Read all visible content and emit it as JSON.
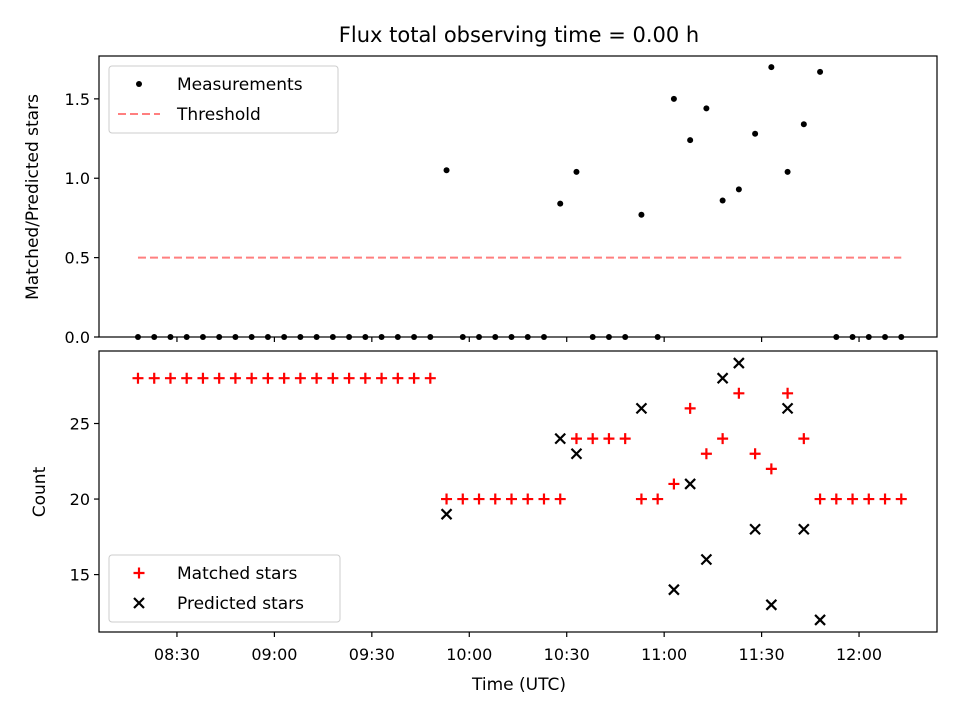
{
  "chart_data": [
    {
      "type": "scatter",
      "title": "Flux total observing time = 0.00 h",
      "xlabel": "",
      "ylabel": "Matched/Predicted stars",
      "xlim": [
        "08:06",
        "12:24"
      ],
      "ylim": [
        0,
        1.77
      ],
      "yticks": [
        0,
        0.5,
        1.0,
        1.5
      ],
      "ytick_labels": [
        "0.0",
        "0.5",
        "1.0",
        "1.5"
      ],
      "legend_position": "top-left",
      "series": [
        {
          "name": "Measurements",
          "color": "#000000",
          "marker": "dot",
          "points": [
            {
              "x": "08:18",
              "y": 0
            },
            {
              "x": "08:23",
              "y": 0
            },
            {
              "x": "08:28",
              "y": 0
            },
            {
              "x": "08:33",
              "y": 0
            },
            {
              "x": "08:38",
              "y": 0
            },
            {
              "x": "08:43",
              "y": 0
            },
            {
              "x": "08:48",
              "y": 0
            },
            {
              "x": "08:53",
              "y": 0
            },
            {
              "x": "08:58",
              "y": 0
            },
            {
              "x": "09:03",
              "y": 0
            },
            {
              "x": "09:08",
              "y": 0
            },
            {
              "x": "09:13",
              "y": 0
            },
            {
              "x": "09:18",
              "y": 0
            },
            {
              "x": "09:23",
              "y": 0
            },
            {
              "x": "09:28",
              "y": 0
            },
            {
              "x": "09:33",
              "y": 0
            },
            {
              "x": "09:38",
              "y": 0
            },
            {
              "x": "09:43",
              "y": 0
            },
            {
              "x": "09:48",
              "y": 0
            },
            {
              "x": "09:53",
              "y": 1.05
            },
            {
              "x": "09:58",
              "y": 0
            },
            {
              "x": "10:03",
              "y": 0
            },
            {
              "x": "10:08",
              "y": 0
            },
            {
              "x": "10:13",
              "y": 0
            },
            {
              "x": "10:18",
              "y": 0
            },
            {
              "x": "10:23",
              "y": 0
            },
            {
              "x": "10:28",
              "y": 0.84
            },
            {
              "x": "10:33",
              "y": 1.04
            },
            {
              "x": "10:38",
              "y": 0
            },
            {
              "x": "10:43",
              "y": 0
            },
            {
              "x": "10:48",
              "y": 0
            },
            {
              "x": "10:53",
              "y": 0.77
            },
            {
              "x": "10:58",
              "y": 0
            },
            {
              "x": "11:03",
              "y": 1.5
            },
            {
              "x": "11:08",
              "y": 1.24
            },
            {
              "x": "11:13",
              "y": 1.44
            },
            {
              "x": "11:18",
              "y": 0.86
            },
            {
              "x": "11:23",
              "y": 0.93
            },
            {
              "x": "11:28",
              "y": 1.28
            },
            {
              "x": "11:33",
              "y": 1.7
            },
            {
              "x": "11:38",
              "y": 1.04
            },
            {
              "x": "11:43",
              "y": 1.34
            },
            {
              "x": "11:48",
              "y": 1.67
            },
            {
              "x": "11:53",
              "y": 0
            },
            {
              "x": "11:58",
              "y": 0
            },
            {
              "x": "12:03",
              "y": 0
            },
            {
              "x": "12:08",
              "y": 0
            },
            {
              "x": "12:13",
              "y": 0
            }
          ]
        },
        {
          "name": "Threshold",
          "color": "#ff7f7f",
          "marker": "dashed-line",
          "points": [
            {
              "x": "08:18",
              "y": 0.5
            },
            {
              "x": "12:13",
              "y": 0.5
            }
          ]
        }
      ]
    },
    {
      "type": "scatter",
      "title": "",
      "xlabel": "Time (UTC)",
      "ylabel": "Count",
      "xlim": [
        "08:06",
        "12:24"
      ],
      "ylim": [
        11.2,
        29.8
      ],
      "yticks": [
        15,
        20,
        25
      ],
      "ytick_labels": [
        "15",
        "20",
        "25"
      ],
      "xticks": [
        "08:30",
        "09:00",
        "09:30",
        "10:00",
        "10:30",
        "11:00",
        "11:30",
        "12:00"
      ],
      "legend_position": "bottom-left",
      "series": [
        {
          "name": "Matched stars",
          "color": "#ff0000",
          "marker": "plus",
          "points": [
            {
              "x": "08:18",
              "y": 28
            },
            {
              "x": "08:23",
              "y": 28
            },
            {
              "x": "08:28",
              "y": 28
            },
            {
              "x": "08:33",
              "y": 28
            },
            {
              "x": "08:38",
              "y": 28
            },
            {
              "x": "08:43",
              "y": 28
            },
            {
              "x": "08:48",
              "y": 28
            },
            {
              "x": "08:53",
              "y": 28
            },
            {
              "x": "08:58",
              "y": 28
            },
            {
              "x": "09:03",
              "y": 28
            },
            {
              "x": "09:08",
              "y": 28
            },
            {
              "x": "09:13",
              "y": 28
            },
            {
              "x": "09:18",
              "y": 28
            },
            {
              "x": "09:23",
              "y": 28
            },
            {
              "x": "09:28",
              "y": 28
            },
            {
              "x": "09:33",
              "y": 28
            },
            {
              "x": "09:38",
              "y": 28
            },
            {
              "x": "09:43",
              "y": 28
            },
            {
              "x": "09:48",
              "y": 28
            },
            {
              "x": "09:53",
              "y": 20
            },
            {
              "x": "09:58",
              "y": 20
            },
            {
              "x": "10:03",
              "y": 20
            },
            {
              "x": "10:08",
              "y": 20
            },
            {
              "x": "10:13",
              "y": 20
            },
            {
              "x": "10:18",
              "y": 20
            },
            {
              "x": "10:23",
              "y": 20
            },
            {
              "x": "10:28",
              "y": 20
            },
            {
              "x": "10:33",
              "y": 24
            },
            {
              "x": "10:38",
              "y": 24
            },
            {
              "x": "10:43",
              "y": 24
            },
            {
              "x": "10:48",
              "y": 24
            },
            {
              "x": "10:53",
              "y": 20
            },
            {
              "x": "10:58",
              "y": 20
            },
            {
              "x": "11:03",
              "y": 21
            },
            {
              "x": "11:08",
              "y": 26
            },
            {
              "x": "11:13",
              "y": 23
            },
            {
              "x": "11:18",
              "y": 24
            },
            {
              "x": "11:23",
              "y": 27
            },
            {
              "x": "11:28",
              "y": 23
            },
            {
              "x": "11:33",
              "y": 22
            },
            {
              "x": "11:38",
              "y": 27
            },
            {
              "x": "11:43",
              "y": 24
            },
            {
              "x": "11:48",
              "y": 20
            },
            {
              "x": "11:53",
              "y": 20
            },
            {
              "x": "11:58",
              "y": 20
            },
            {
              "x": "12:03",
              "y": 20
            },
            {
              "x": "12:08",
              "y": 20
            },
            {
              "x": "12:13",
              "y": 20
            }
          ]
        },
        {
          "name": "Predicted stars",
          "color": "#000000",
          "marker": "x",
          "points": [
            {
              "x": "09:53",
              "y": 19
            },
            {
              "x": "10:28",
              "y": 24
            },
            {
              "x": "10:33",
              "y": 23
            },
            {
              "x": "10:53",
              "y": 26
            },
            {
              "x": "11:03",
              "y": 14
            },
            {
              "x": "11:08",
              "y": 21
            },
            {
              "x": "11:13",
              "y": 16
            },
            {
              "x": "11:18",
              "y": 28
            },
            {
              "x": "11:23",
              "y": 29
            },
            {
              "x": "11:28",
              "y": 18
            },
            {
              "x": "11:33",
              "y": 13
            },
            {
              "x": "11:38",
              "y": 26
            },
            {
              "x": "11:43",
              "y": 18
            },
            {
              "x": "11:48",
              "y": 12
            }
          ]
        }
      ]
    }
  ]
}
